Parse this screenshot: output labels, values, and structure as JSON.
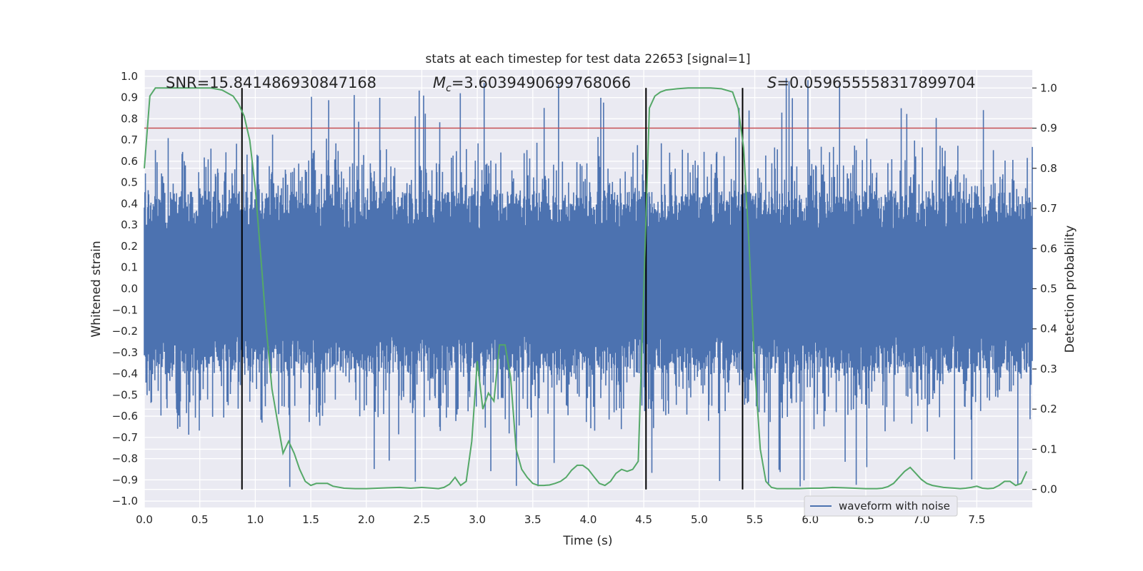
{
  "chart_data": {
    "type": "line",
    "title": "stats at each timestep for test data 22653 [signal=1]",
    "xlabel": "Time (s)",
    "ylabel": "Whitened strain",
    "ylabel_right": "Detection probability",
    "xlim": [
      0.0,
      8.0
    ],
    "ylim": [
      -1.03,
      1.03
    ],
    "ylim_right": [
      -0.045,
      1.045
    ],
    "x_ticks": [
      "0.0",
      "0.5",
      "1.0",
      "1.5",
      "2.0",
      "2.5",
      "3.0",
      "3.5",
      "4.0",
      "4.5",
      "5.0",
      "5.5",
      "6.0",
      "6.5",
      "7.0",
      "7.5"
    ],
    "y_ticks": [
      "1.0",
      "0.9",
      "0.8",
      "0.7",
      "0.6",
      "0.5",
      "0.4",
      "0.3",
      "0.2",
      "0.1",
      "0.0",
      "−0.1",
      "−0.2",
      "−0.3",
      "−0.4",
      "−0.5",
      "−0.6",
      "−0.7",
      "−0.8",
      "−0.9",
      "−1.0"
    ],
    "y_ticks_right": [
      "1.0",
      "0.9",
      "0.8",
      "0.7",
      "0.6",
      "0.5",
      "0.4",
      "0.3",
      "0.2",
      "0.1",
      "0.0"
    ],
    "grid": true,
    "legend": {
      "position": "lower-right",
      "entries": [
        "waveform with noise"
      ]
    },
    "annotations": {
      "snr": "SNR=15.841486930847168",
      "mc_symbol": "M",
      "mc_sub": "c",
      "mc_value": "=3.6039490699768066",
      "s_symbol": "S",
      "s_value": "=0.059655558317899704"
    },
    "threshold_right": 0.9,
    "vertical_lines_x": [
      0.88,
      4.52,
      5.39
    ],
    "waveform": {
      "name": "waveform with noise",
      "n_samples": 1600,
      "color": "#4c72b0",
      "approx_range": [
        -0.95,
        1.0
      ]
    },
    "detection_probability": {
      "color": "#55a868",
      "x": [
        0.0,
        0.05,
        0.1,
        0.2,
        0.3,
        0.4,
        0.5,
        0.6,
        0.7,
        0.8,
        0.85,
        0.9,
        0.95,
        1.0,
        1.05,
        1.1,
        1.15,
        1.2,
        1.25,
        1.3,
        1.35,
        1.4,
        1.45,
        1.5,
        1.55,
        1.6,
        1.65,
        1.7,
        1.8,
        1.9,
        2.0,
        2.1,
        2.2,
        2.3,
        2.4,
        2.5,
        2.6,
        2.65,
        2.7,
        2.75,
        2.8,
        2.85,
        2.9,
        2.95,
        3.0,
        3.05,
        3.1,
        3.15,
        3.2,
        3.25,
        3.3,
        3.35,
        3.4,
        3.45,
        3.5,
        3.55,
        3.6,
        3.65,
        3.7,
        3.75,
        3.8,
        3.85,
        3.9,
        3.95,
        4.0,
        4.05,
        4.1,
        4.15,
        4.2,
        4.25,
        4.3,
        4.35,
        4.4,
        4.45,
        4.5,
        4.55,
        4.6,
        4.65,
        4.7,
        4.8,
        4.9,
        5.0,
        5.1,
        5.2,
        5.3,
        5.35,
        5.4,
        5.45,
        5.5,
        5.55,
        5.6,
        5.65,
        5.7,
        5.8,
        5.9,
        6.0,
        6.1,
        6.2,
        6.3,
        6.4,
        6.5,
        6.6,
        6.65,
        6.7,
        6.75,
        6.8,
        6.85,
        6.9,
        6.95,
        7.0,
        7.05,
        7.1,
        7.2,
        7.3,
        7.35,
        7.4,
        7.45,
        7.5,
        7.55,
        7.6,
        7.65,
        7.7,
        7.75,
        7.8,
        7.85,
        7.9,
        7.95
      ],
      "y": [
        0.8,
        0.98,
        1.0,
        1.0,
        1.0,
        1.0,
        1.0,
        1.0,
        0.995,
        0.98,
        0.96,
        0.93,
        0.87,
        0.75,
        0.58,
        0.4,
        0.25,
        0.17,
        0.09,
        0.12,
        0.09,
        0.05,
        0.02,
        0.01,
        0.015,
        0.015,
        0.015,
        0.008,
        0.003,
        0.002,
        0.002,
        0.003,
        0.004,
        0.005,
        0.003,
        0.005,
        0.003,
        0.002,
        0.005,
        0.013,
        0.03,
        0.01,
        0.02,
        0.12,
        0.32,
        0.2,
        0.24,
        0.22,
        0.36,
        0.36,
        0.28,
        0.1,
        0.05,
        0.03,
        0.015,
        0.01,
        0.01,
        0.011,
        0.015,
        0.02,
        0.03,
        0.048,
        0.06,
        0.06,
        0.05,
        0.032,
        0.015,
        0.01,
        0.02,
        0.04,
        0.05,
        0.045,
        0.05,
        0.07,
        0.5,
        0.95,
        0.98,
        0.99,
        0.995,
        0.998,
        1.0,
        1.0,
        1.0,
        0.998,
        0.99,
        0.95,
        0.85,
        0.6,
        0.3,
        0.1,
        0.02,
        0.005,
        0.002,
        0.002,
        0.002,
        0.003,
        0.003,
        0.005,
        0.004,
        0.003,
        0.002,
        0.002,
        0.003,
        0.007,
        0.015,
        0.03,
        0.045,
        0.055,
        0.04,
        0.025,
        0.015,
        0.01,
        0.005,
        0.003,
        0.002,
        0.003,
        0.005,
        0.008,
        0.003,
        0.002,
        0.003,
        0.01,
        0.02,
        0.02,
        0.01,
        0.015,
        0.045
      ]
    }
  }
}
